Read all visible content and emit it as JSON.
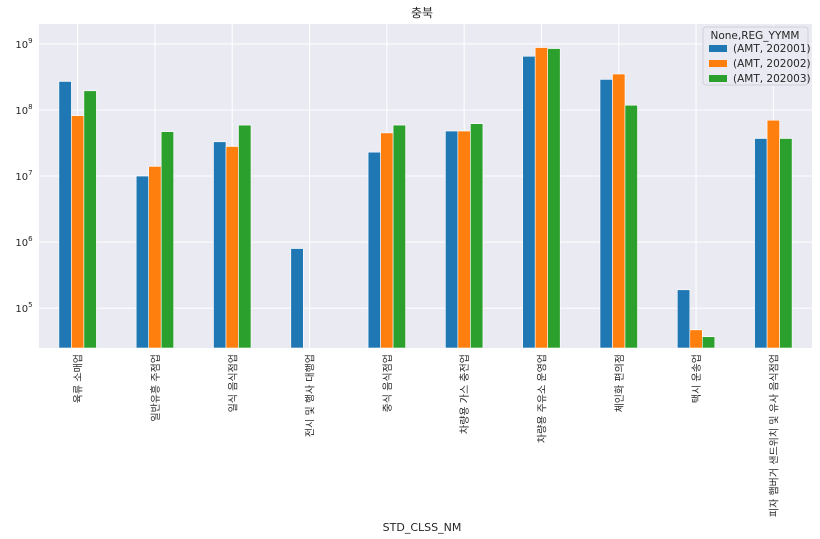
{
  "chart_data": {
    "type": "bar",
    "title": "충북",
    "xlabel": "STD_CLSS_NM",
    "ylabel": "",
    "yscale": "log",
    "ylim": [
      25000,
      2000000000
    ],
    "grid": true,
    "legend_title": "None,REG_YYMM",
    "legend_position": "top-right",
    "y_ticks": [
      {
        "value": 100000,
        "base": "10",
        "exp": "5"
      },
      {
        "value": 1000000,
        "base": "10",
        "exp": "6"
      },
      {
        "value": 10000000,
        "base": "10",
        "exp": "7"
      },
      {
        "value": 100000000,
        "base": "10",
        "exp": "8"
      },
      {
        "value": 1000000000,
        "base": "10",
        "exp": "9"
      }
    ],
    "categories": [
      "육류 소매업",
      "일반유흥 주점업",
      "일식 음식점업",
      "전시 및 행사 대행업",
      "중식 음식점업",
      "차량용 가스 충전업",
      "차량용 주유소 운영업",
      "체인화 편의점",
      "택시 운송업",
      "피자 햄버거 샌드위치 및 유사 음식점업"
    ],
    "series": [
      {
        "name": "(AMT, 202001)",
        "color": "#1f77b4",
        "values": [
          270000000,
          10000000,
          33000000,
          800000,
          23000000,
          48000000,
          650000000,
          290000000,
          190000,
          37000000
        ]
      },
      {
        "name": "(AMT, 202002)",
        "color": "#ff7f0e",
        "values": [
          82000000,
          14000000,
          28000000,
          null,
          45000000,
          48000000,
          880000000,
          350000000,
          47000,
          70000000
        ]
      },
      {
        "name": "(AMT, 202003)",
        "color": "#2ca02c",
        "values": [
          195000000,
          47000000,
          59000000,
          null,
          59000000,
          62000000,
          850000000,
          118000000,
          37000,
          37000000
        ]
      }
    ]
  }
}
